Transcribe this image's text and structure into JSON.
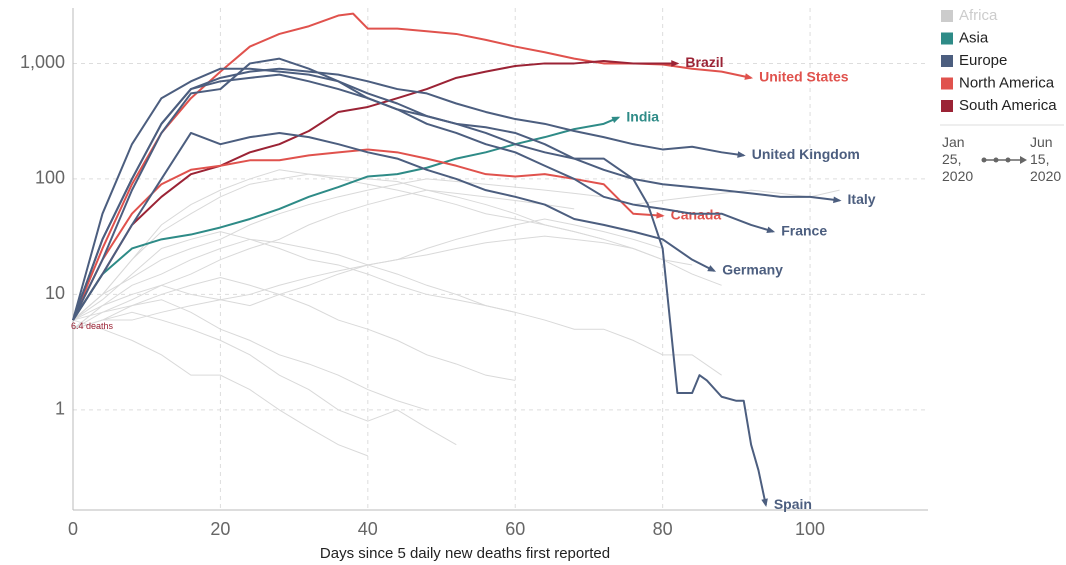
{
  "chart_data": {
    "type": "line",
    "yscale": "log",
    "grid": true,
    "xlabel": "Days since 5 daily new deaths first reported",
    "xlim": [
      0,
      116
    ],
    "xticks": [
      0,
      20,
      40,
      60,
      80,
      100
    ],
    "ylim": [
      0.136,
      3020
    ],
    "yticks": [
      1,
      10,
      100,
      {
        "value": 1000,
        "label": "1,000"
      }
    ],
    "annotations": [
      {
        "text": "6.4 deaths",
        "x": 0,
        "y": 6.4,
        "color": "#9b2335"
      }
    ],
    "legend": [
      {
        "name": "Africa",
        "color": "#cccccc"
      },
      {
        "name": "Asia",
        "color": "#2e8b87"
      },
      {
        "name": "Europe",
        "color": "#4c5e7f"
      },
      {
        "name": "North America",
        "color": "#e0524d"
      },
      {
        "name": "South America",
        "color": "#9b2335"
      }
    ],
    "timeline": {
      "start": "Jan 25, 2020",
      "end": "Jun 15, 2020"
    },
    "background_color": "#d9d9d9",
    "background_series": [
      {
        "x": [
          0,
          4,
          8,
          12,
          16,
          20,
          24,
          28,
          32,
          36,
          40,
          44,
          48,
          52,
          56,
          60
        ],
        "values": [
          6,
          8,
          12,
          15,
          20,
          25,
          30,
          28,
          25,
          22,
          18,
          15,
          12,
          10,
          8,
          7
        ]
      },
      {
        "x": [
          0,
          4,
          8,
          12,
          16,
          20,
          24,
          28,
          32,
          36,
          40,
          44,
          48,
          52
        ],
        "values": [
          5,
          6,
          7,
          6,
          5,
          4,
          3,
          2,
          1.5,
          1,
          0.8,
          1,
          0.7,
          0.5
        ]
      },
      {
        "x": [
          0,
          4,
          8,
          12,
          16,
          20,
          24,
          28,
          32,
          36,
          40,
          44,
          48,
          52,
          56,
          60,
          64,
          68,
          72
        ],
        "values": [
          6,
          10,
          20,
          35,
          50,
          70,
          90,
          100,
          110,
          105,
          100,
          95,
          80,
          70,
          60,
          50,
          40,
          35,
          30
        ]
      },
      {
        "x": [
          0,
          4,
          8,
          12,
          16,
          20,
          24,
          28,
          32,
          36,
          40,
          44,
          48,
          52,
          56,
          60,
          64,
          68
        ],
        "values": [
          5,
          7,
          9,
          12,
          15,
          20,
          25,
          30,
          40,
          50,
          60,
          70,
          80,
          75,
          70,
          65,
          60,
          55
        ]
      },
      {
        "x": [
          0,
          4,
          8,
          12,
          16,
          20,
          24,
          28,
          32,
          36,
          40
        ],
        "values": [
          6,
          5,
          4,
          3,
          2,
          2,
          1.5,
          1,
          0.7,
          0.5,
          0.4
        ]
      },
      {
        "x": [
          0,
          4,
          8,
          12,
          16,
          20,
          24,
          28,
          32,
          36,
          40,
          44,
          48,
          52,
          56,
          60,
          64,
          68,
          72,
          76,
          80
        ],
        "values": [
          5,
          8,
          10,
          12,
          10,
          9,
          8,
          10,
          12,
          15,
          18,
          20,
          25,
          30,
          35,
          40,
          45,
          40,
          35,
          30,
          25
        ]
      },
      {
        "x": [
          0,
          4,
          8,
          12,
          16,
          20,
          24,
          28,
          32,
          36,
          40,
          44,
          48,
          52,
          56,
          60,
          64,
          68,
          72,
          76,
          80,
          84,
          88
        ],
        "values": [
          6,
          9,
          15,
          25,
          30,
          35,
          30,
          25,
          20,
          18,
          15,
          12,
          10,
          9,
          8,
          7,
          6,
          5,
          5,
          4,
          3,
          3,
          2
        ]
      },
      {
        "x": [
          0,
          4,
          8,
          12,
          16,
          20,
          24,
          28,
          32,
          36,
          40,
          44,
          48,
          52,
          56,
          60,
          64,
          68,
          72,
          76,
          80,
          84,
          88,
          92,
          96,
          100,
          104
        ],
        "values": [
          6,
          10,
          14,
          20,
          25,
          30,
          40,
          50,
          60,
          70,
          80,
          90,
          100,
          95,
          90,
          85,
          80,
          75,
          70,
          60,
          65,
          70,
          75,
          80,
          75,
          70,
          80
        ]
      },
      {
        "x": [
          0,
          4,
          8,
          12,
          16,
          20,
          24,
          28,
          32,
          36,
          40,
          44,
          48
        ],
        "values": [
          5,
          6,
          8,
          9,
          7,
          5,
          4,
          3,
          2.5,
          2,
          1.5,
          1.2,
          1
        ]
      },
      {
        "x": [
          0,
          4,
          8,
          12,
          16,
          20,
          24,
          28,
          32,
          36,
          40,
          44,
          48,
          52,
          56,
          60
        ],
        "values": [
          6,
          7,
          8,
          10,
          12,
          14,
          12,
          10,
          8,
          6,
          5,
          4,
          3,
          2.5,
          2,
          1.8
        ]
      },
      {
        "x": [
          0,
          4,
          8,
          12,
          16,
          20,
          24,
          28,
          32,
          36,
          40,
          44,
          48,
          52,
          56,
          60,
          64,
          68,
          72,
          76,
          80,
          84
        ],
        "values": [
          6,
          10,
          20,
          40,
          60,
          80,
          100,
          120,
          110,
          100,
          90,
          80,
          70,
          60,
          50,
          45,
          40,
          35,
          30,
          25,
          20,
          18
        ]
      },
      {
        "x": [
          0,
          4,
          8,
          12,
          16,
          20,
          24,
          28,
          32,
          36,
          40,
          44,
          48,
          52,
          56,
          60,
          64,
          68,
          72,
          76,
          80,
          84,
          88
        ],
        "values": [
          5,
          6,
          6,
          7,
          8,
          9,
          10,
          12,
          14,
          16,
          18,
          20,
          22,
          25,
          28,
          30,
          32,
          30,
          28,
          25,
          20,
          15,
          12
        ]
      }
    ],
    "series": [
      {
        "name": "United States",
        "color": "#e0524d",
        "x": [
          0,
          4,
          8,
          12,
          16,
          20,
          24,
          28,
          32,
          36,
          38,
          40,
          44,
          48,
          52,
          56,
          60,
          64,
          68,
          72,
          76,
          80,
          84,
          88,
          92
        ],
        "values": [
          6,
          25,
          90,
          250,
          500,
          850,
          1400,
          1800,
          2100,
          2600,
          2700,
          2000,
          2000,
          1900,
          1800,
          1600,
          1400,
          1250,
          1100,
          1000,
          1000,
          980,
          900,
          850,
          750
        ]
      },
      {
        "name": "Brazil",
        "color": "#9b2335",
        "x": [
          0,
          4,
          8,
          12,
          16,
          20,
          24,
          28,
          32,
          36,
          40,
          44,
          48,
          52,
          56,
          60,
          64,
          68,
          72,
          76,
          80,
          82
        ],
        "values": [
          6,
          15,
          40,
          70,
          110,
          130,
          170,
          200,
          260,
          380,
          420,
          500,
          600,
          750,
          850,
          950,
          1000,
          1000,
          1050,
          1000,
          1000,
          1000
        ]
      },
      {
        "name": "India",
        "color": "#2e8b87",
        "x": [
          0,
          4,
          8,
          12,
          16,
          20,
          24,
          28,
          32,
          36,
          40,
          44,
          48,
          52,
          56,
          60,
          64,
          68,
          72,
          74
        ],
        "values": [
          6,
          15,
          25,
          30,
          33,
          38,
          45,
          55,
          70,
          85,
          105,
          110,
          125,
          150,
          170,
          200,
          230,
          270,
          300,
          340
        ]
      },
      {
        "name": "Canada",
        "color": "#e0524d",
        "x": [
          0,
          4,
          8,
          12,
          16,
          20,
          24,
          28,
          32,
          36,
          40,
          44,
          48,
          52,
          56,
          60,
          64,
          68,
          72,
          76,
          80
        ],
        "values": [
          6,
          20,
          50,
          90,
          120,
          130,
          145,
          145,
          160,
          170,
          180,
          170,
          150,
          130,
          110,
          105,
          110,
          100,
          90,
          50,
          48
        ]
      },
      {
        "name": "United Kingdom",
        "color": "#4c5e7f",
        "x": [
          0,
          4,
          8,
          12,
          16,
          20,
          24,
          28,
          32,
          36,
          40,
          44,
          48,
          52,
          56,
          60,
          64,
          68,
          72,
          76,
          80,
          84,
          88,
          91
        ],
        "values": [
          6,
          30,
          100,
          300,
          600,
          750,
          850,
          900,
          850,
          800,
          700,
          600,
          550,
          450,
          380,
          330,
          300,
          260,
          230,
          200,
          180,
          190,
          170,
          160
        ]
      },
      {
        "name": "Italy",
        "color": "#4c5e7f",
        "x": [
          0,
          4,
          8,
          12,
          16,
          20,
          24,
          28,
          32,
          36,
          40,
          44,
          48,
          52,
          56,
          60,
          64,
          68,
          72,
          76,
          80,
          84,
          88,
          92,
          96,
          100,
          104
        ],
        "values": [
          6,
          30,
          100,
          300,
          600,
          700,
          750,
          800,
          700,
          600,
          500,
          400,
          350,
          300,
          250,
          200,
          170,
          150,
          120,
          100,
          90,
          85,
          80,
          75,
          70,
          70,
          65
        ]
      },
      {
        "name": "France",
        "color": "#4c5e7f",
        "x": [
          0,
          4,
          8,
          12,
          16,
          20,
          24,
          28,
          32,
          36,
          40,
          44,
          48,
          52,
          56,
          60,
          64,
          68,
          72,
          76,
          80,
          84,
          88,
          92,
          95
        ],
        "values": [
          6,
          20,
          80,
          250,
          550,
          600,
          1000,
          1100,
          900,
          700,
          500,
          400,
          300,
          250,
          200,
          170,
          130,
          100,
          70,
          60,
          55,
          50,
          50,
          40,
          35
        ]
      },
      {
        "name": "Germany",
        "color": "#4c5e7f",
        "x": [
          0,
          4,
          8,
          12,
          16,
          20,
          24,
          28,
          32,
          36,
          40,
          44,
          48,
          52,
          56,
          60,
          64,
          68,
          72,
          76,
          80,
          84,
          87
        ],
        "values": [
          6,
          15,
          40,
          100,
          250,
          200,
          230,
          250,
          230,
          200,
          170,
          150,
          120,
          100,
          80,
          70,
          60,
          45,
          40,
          35,
          30,
          20,
          16
        ]
      },
      {
        "name": "Spain",
        "color": "#4c5e7f",
        "x": [
          0,
          4,
          8,
          12,
          16,
          20,
          24,
          28,
          32,
          36,
          40,
          44,
          48,
          52,
          56,
          60,
          64,
          68,
          72,
          76,
          78,
          80,
          82,
          84,
          85,
          86,
          88,
          90,
          91,
          92,
          93,
          94
        ],
        "values": [
          6,
          50,
          200,
          500,
          700,
          900,
          900,
          850,
          800,
          700,
          550,
          450,
          350,
          300,
          280,
          250,
          200,
          150,
          150,
          100,
          60,
          25,
          1.4,
          1.4,
          2,
          1.8,
          1.3,
          1.2,
          1.2,
          0.5,
          0.3,
          0.15
        ]
      }
    ]
  }
}
